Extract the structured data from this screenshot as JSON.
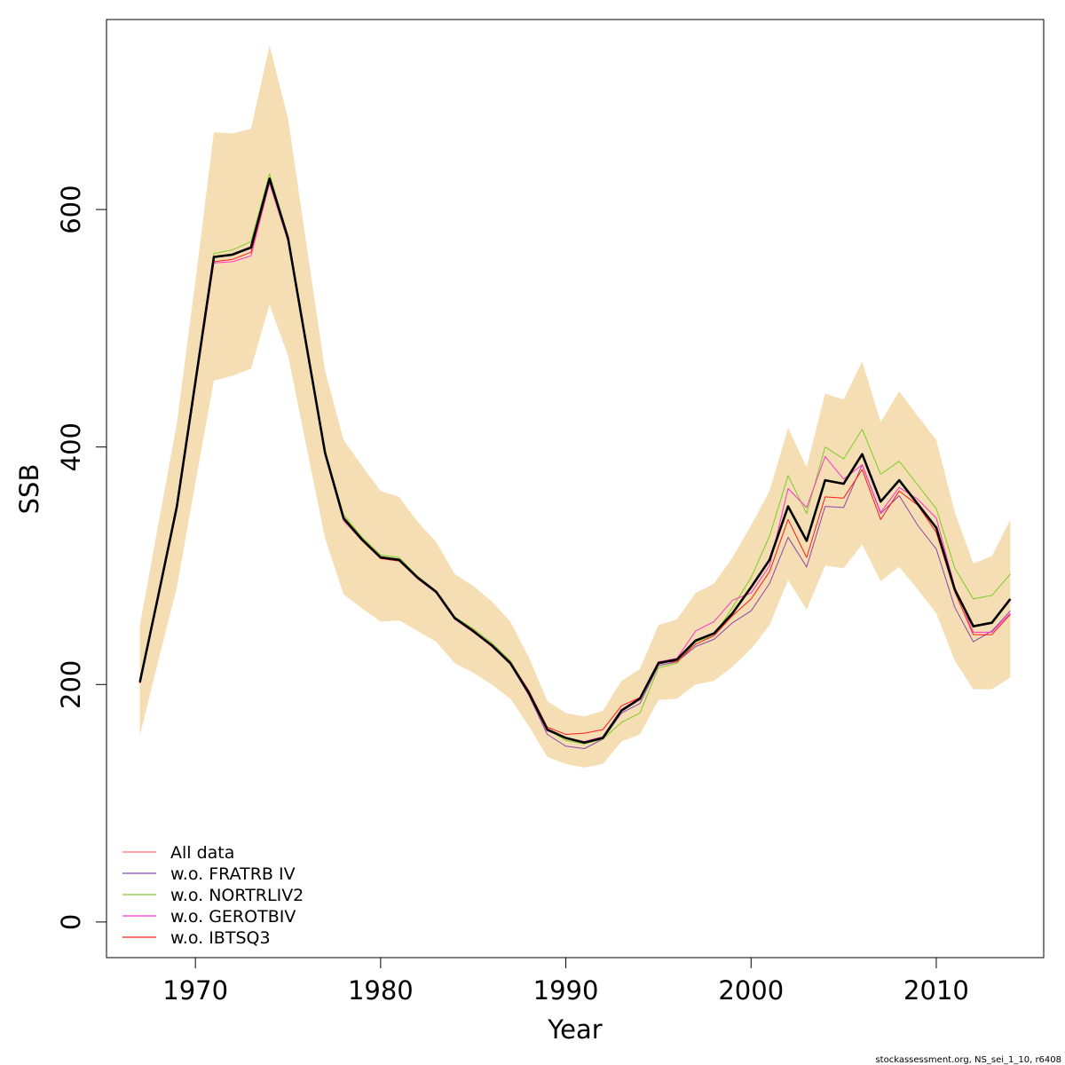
{
  "credit": "stockassessment.org, NS_sei_1_10, r6408",
  "colors": {
    "band": "#F5DEB3",
    "main_line": "#000000",
    "all_data": "#FF6B6B",
    "fratrb": "#8E44AD",
    "nortrl": "#7CCD24",
    "gerot": "#FF33CC",
    "ibtsq3": "#FF1A1A"
  },
  "chart_data": {
    "type": "line",
    "xlabel": "Year",
    "ylabel": "SSB",
    "xlim": [
      1965.2,
      2015.8
    ],
    "ylim": [
      -30,
      760
    ],
    "x_ticks": [
      1970,
      1980,
      1990,
      2000,
      2010
    ],
    "y_ticks": [
      0,
      200,
      400,
      600
    ],
    "legend_position": "bottom-left",
    "x": [
      1967,
      1968,
      1969,
      1970,
      1971,
      1972,
      1973,
      1974,
      1975,
      1976,
      1977,
      1978,
      1979,
      1980,
      1981,
      1982,
      1983,
      1984,
      1985,
      1986,
      1987,
      1988,
      1989,
      1990,
      1991,
      1992,
      1993,
      1994,
      1995,
      1996,
      1997,
      1998,
      1999,
      2000,
      2001,
      2002,
      2003,
      2004,
      2005,
      2006,
      2007,
      2008,
      2009,
      2010,
      2011,
      2012,
      2013,
      2014
    ],
    "band": {
      "lower": [
        157,
        220,
        282,
        370,
        456,
        460,
        466,
        520,
        477,
        400,
        323,
        276,
        264,
        253,
        254,
        245,
        236,
        218,
        210,
        200,
        188,
        165,
        139,
        133,
        130,
        133,
        152,
        158,
        187,
        188,
        200,
        203,
        215,
        230,
        250,
        288,
        263,
        300,
        298,
        318,
        287,
        299,
        280,
        260,
        220,
        196,
        196,
        206
      ],
      "upper": [
        250,
        335,
        420,
        540,
        665,
        664,
        668,
        738,
        677,
        570,
        464,
        406,
        384,
        363,
        358,
        337,
        320,
        293,
        283,
        270,
        253,
        223,
        186,
        176,
        173,
        178,
        203,
        213,
        250,
        255,
        277,
        285,
        307,
        334,
        363,
        416,
        383,
        445,
        440,
        472,
        421,
        447,
        426,
        406,
        345,
        302,
        308,
        339
      ]
    },
    "main_series": {
      "name": "",
      "values": [
        202,
        275,
        350,
        455,
        560,
        562,
        568,
        626,
        576,
        485,
        395,
        340,
        322,
        307,
        305,
        290,
        278,
        256,
        245,
        233,
        218,
        193,
        162,
        155,
        151,
        155,
        178,
        188,
        218,
        221,
        237,
        243,
        260,
        282,
        305,
        350,
        321,
        372,
        369,
        394,
        354,
        372,
        352,
        332,
        280,
        249,
        252,
        272
      ]
    },
    "legend": [
      {
        "label": "All data",
        "color_key": "all_data"
      },
      {
        "label": "w.o. FRATRB IV",
        "color_key": "fratrb"
      },
      {
        "label": "w.o. NORTRLIV2",
        "color_key": "nortrl"
      },
      {
        "label": "w.o. GEROTBIV",
        "color_key": "gerot"
      },
      {
        "label": "w.o. IBTSQ3",
        "color_key": "ibtsq3"
      }
    ],
    "series": [
      {
        "name": "All data",
        "color_key": "all_data",
        "values": [
          202,
          275,
          350,
          455,
          560,
          562,
          568,
          626,
          576,
          485,
          395,
          340,
          322,
          307,
          305,
          290,
          278,
          256,
          245,
          233,
          218,
          193,
          162,
          155,
          151,
          155,
          178,
          188,
          218,
          221,
          237,
          243,
          260,
          282,
          305,
          350,
          321,
          372,
          369,
          394,
          354,
          372,
          352,
          332,
          280,
          249,
          252,
          272
        ]
      },
      {
        "name": "w.o. FRATRB IV",
        "color_key": "fratrb",
        "values": [
          202,
          275,
          350,
          455,
          560,
          562,
          568,
          625,
          576,
          485,
          395,
          340,
          322,
          307,
          305,
          290,
          277,
          255,
          245,
          232,
          217,
          191,
          158,
          148,
          146,
          154,
          176,
          184,
          216,
          219,
          232,
          238,
          252,
          262,
          285,
          324,
          299,
          350,
          349,
          385,
          344,
          359,
          334,
          314,
          265,
          236,
          245,
          262
        ]
      },
      {
        "name": "w.o. NORTRLIV2",
        "color_key": "nortrl",
        "values": [
          203,
          277,
          352,
          458,
          563,
          566,
          573,
          630,
          578,
          487,
          397,
          343,
          324,
          309,
          307,
          291,
          279,
          257,
          247,
          235,
          220,
          194,
          162,
          153,
          150,
          154,
          168,
          176,
          214,
          218,
          236,
          241,
          265,
          290,
          325,
          376,
          344,
          400,
          390,
          415,
          377,
          388,
          368,
          348,
          298,
          272,
          275,
          293
        ]
      },
      {
        "name": "w.o. GEROTBIV",
        "color_key": "gerot",
        "values": [
          201,
          273,
          347,
          451,
          555,
          556,
          561,
          622,
          573,
          483,
          393,
          338,
          321,
          306,
          304,
          289,
          277,
          255,
          244,
          232,
          217,
          192,
          161,
          155,
          152,
          156,
          179,
          189,
          219,
          222,
          245,
          253,
          271,
          277,
          300,
          365,
          349,
          392,
          373,
          385,
          345,
          366,
          356,
          340,
          282,
          244,
          244,
          260
        ]
      },
      {
        "name": "w.o. IBTSQ3",
        "color_key": "ibtsq3",
        "values": [
          201,
          274,
          348,
          452,
          556,
          558,
          564,
          624,
          575,
          484,
          394,
          339,
          321,
          306,
          304,
          289,
          278,
          256,
          246,
          233,
          219,
          195,
          164,
          158,
          159,
          162,
          182,
          189,
          219,
          219,
          234,
          241,
          258,
          272,
          295,
          339,
          307,
          358,
          357,
          381,
          339,
          363,
          351,
          328,
          278,
          242,
          242,
          259
        ]
      }
    ]
  }
}
